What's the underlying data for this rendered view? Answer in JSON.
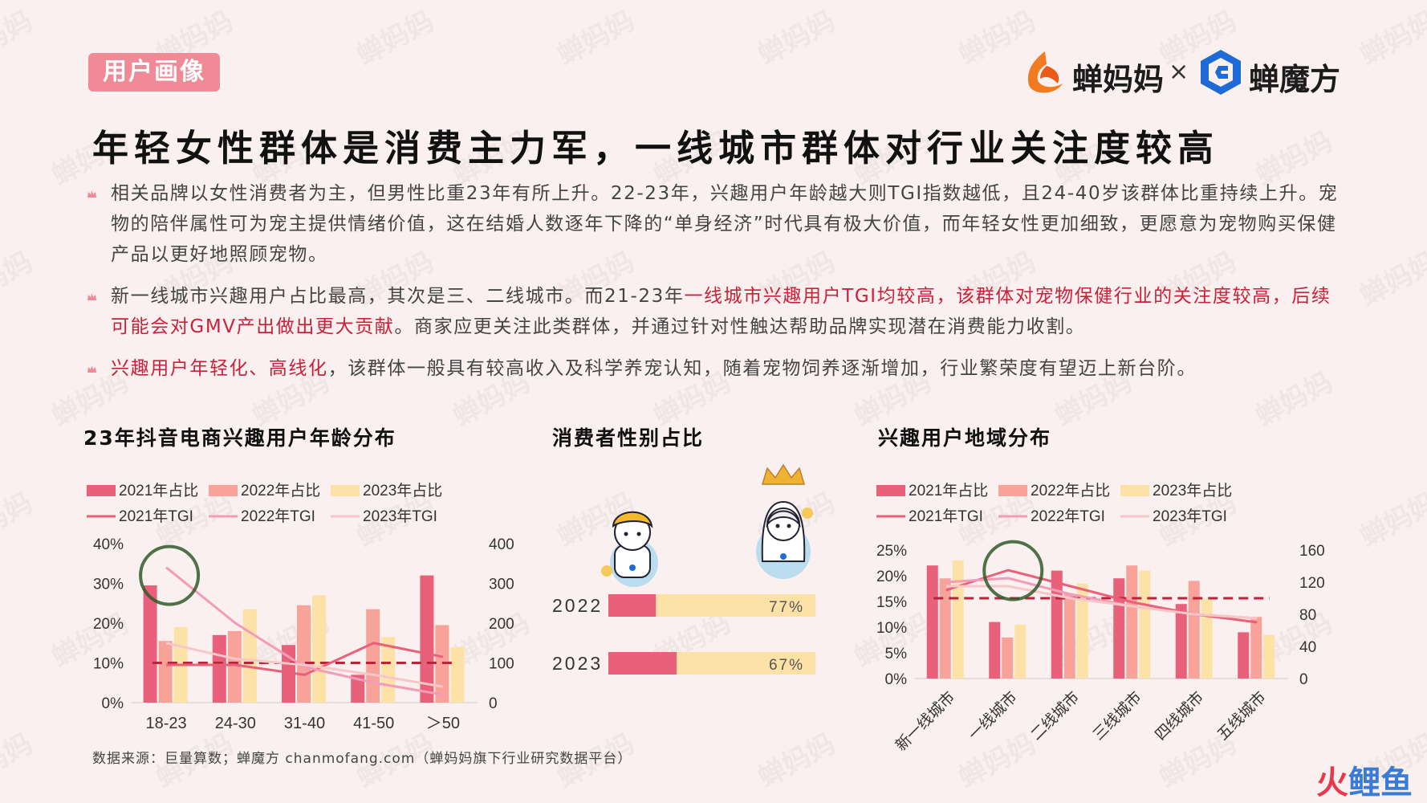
{
  "header": {
    "tag": "用户画像",
    "logo_left_text": "蝉妈妈",
    "logo_times": "×",
    "logo_right_text": "蝉魔方",
    "headline": "年轻女性群体是消费主力军，一线城市群体对行业关注度较高"
  },
  "bullets": [
    {
      "segments": [
        {
          "text": "相关品牌以女性消费者为主，但男性比重23年有所上升。22-23年，兴趣用户年龄越大则TGI指数越低，且24-40岁该群体比重持续上升。宠物的陪伴属性可为宠主提供情绪价值，这在结婚人数逐年下降的“单身经济”时代具有极大价值，而年轻女性更加细致，更愿意为宠物购买保健产品以更好地照顾宠物。",
          "highlight": false
        }
      ]
    },
    {
      "segments": [
        {
          "text": "新一线城市兴趣用户占比最高，其次是三、二线城市。而21-23年",
          "highlight": false
        },
        {
          "text": "一线城市兴趣用户TGI均较高，该群体对宠物保健行业的关注度较高，后续可能会对GMV产出做出更大贡献",
          "highlight": true
        },
        {
          "text": "。商家应更关注此类群体，并通过针对性触达帮助品牌实现潜在消费能力收割。",
          "highlight": false
        }
      ]
    },
    {
      "segments": [
        {
          "text": "兴趣用户年轻化、高线化",
          "highlight": true
        },
        {
          "text": "，该群体一般具有较高收入及科学养宠认知，随着宠物饲养逐渐增加，行业繁荣度有望迈上新台阶。",
          "highlight": false
        }
      ]
    }
  ],
  "sections": {
    "age_title": "23年抖音电商兴趣用户年龄分布",
    "gender_title": "消费者性别占比",
    "region_title": "兴趣用户地域分布"
  },
  "source": "数据来源：巨量算数；蝉魔方  chanmofang.com（蝉妈妈旗下行业研究数据平台）",
  "watermark_text": "蝉妈妈",
  "corner_brand": "火鲤鱼",
  "colors": {
    "bar2021": "#e8607a",
    "bar2022": "#f7a39a",
    "bar2023": "#fde2a8",
    "tgi2021": "#e8607a",
    "tgi2022": "#f39bb8",
    "tgi2023": "#f7c6c8",
    "ref_line": "#b8243a",
    "circle": "#2f5a2a",
    "highlight": "#c8223a"
  },
  "chart_data": [
    {
      "type": "bar",
      "title": "23年抖音电商兴趣用户年龄分布",
      "categories": [
        "18-23",
        "24-30",
        "31-40",
        "41-50",
        "＞50"
      ],
      "y_left_ticks": [
        "0%",
        "10%",
        "20%",
        "30%",
        "40%"
      ],
      "y_right_ticks": [
        "0",
        "100",
        "200",
        "300",
        "400"
      ],
      "ylim_left": [
        0,
        40
      ],
      "ylim_right": [
        0,
        400
      ],
      "legend": [
        "2021年占比",
        "2022年占比",
        "2023年占比",
        "2021年TGI",
        "2022年TGI",
        "2023年TGI"
      ],
      "series": [
        {
          "name": "2021年占比",
          "kind": "bar",
          "values": [
            29.5,
            17,
            14.5,
            7,
            32
          ]
        },
        {
          "name": "2022年占比",
          "kind": "bar",
          "values": [
            15.5,
            18,
            24.5,
            23.5,
            19.5
          ]
        },
        {
          "name": "2023年占比",
          "kind": "bar",
          "values": [
            19,
            23.5,
            27,
            16.5,
            14
          ]
        },
        {
          "name": "2021年TGI",
          "kind": "line",
          "values": [
            95,
            95,
            70,
            150,
            115
          ]
        },
        {
          "name": "2022年TGI",
          "kind": "line",
          "values": [
            340,
            200,
            90,
            50,
            20
          ]
        },
        {
          "name": "2023年TGI",
          "kind": "line",
          "values": [
            150,
            110,
            95,
            70,
            40
          ]
        }
      ],
      "reference_line": 100
    },
    {
      "type": "bar",
      "title": "消费者性别占比",
      "orientation": "horizontal",
      "categories": [
        "2022",
        "2023"
      ],
      "series": [
        {
          "name": "male",
          "values": [
            23,
            33
          ]
        },
        {
          "name": "female",
          "values": [
            77,
            67
          ]
        }
      ],
      "labels": [
        "77%",
        "67%"
      ]
    },
    {
      "type": "bar",
      "title": "兴趣用户地域分布",
      "categories": [
        "新一线城市",
        "一线城市",
        "二线城市",
        "三线城市",
        "四线城市",
        "五线城市"
      ],
      "y_left_ticks": [
        "0%",
        "5%",
        "10%",
        "15%",
        "20%",
        "25%"
      ],
      "y_right_ticks": [
        "0",
        "40",
        "80",
        "120",
        "160"
      ],
      "ylim_left": [
        0,
        25
      ],
      "ylim_right": [
        0,
        160
      ],
      "legend": [
        "2021年占比",
        "2022年占比",
        "2023年占比",
        "2021年TGI",
        "2022年TGI",
        "2023年TGI"
      ],
      "series": [
        {
          "name": "2021年占比",
          "kind": "bar",
          "values": [
            22,
            11,
            21,
            19.5,
            14.5,
            9
          ]
        },
        {
          "name": "2022年占比",
          "kind": "bar",
          "values": [
            19.5,
            8,
            16.5,
            22,
            19,
            12
          ]
        },
        {
          "name": "2023年占比",
          "kind": "bar",
          "values": [
            23,
            10.5,
            18.5,
            21,
            15.5,
            8.5
          ]
        },
        {
          "name": "2021年TGI",
          "kind": "line",
          "values": [
            110,
            135,
            115,
            95,
            80,
            70
          ]
        },
        {
          "name": "2022年TGI",
          "kind": "line",
          "values": [
            120,
            125,
            105,
            90,
            80,
            75
          ]
        },
        {
          "name": "2023年TGI",
          "kind": "line",
          "values": [
            115,
            115,
            100,
            90,
            80,
            75
          ]
        }
      ],
      "reference_line": 100
    }
  ]
}
